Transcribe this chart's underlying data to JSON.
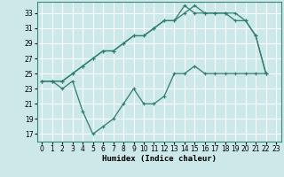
{
  "xlabel": "Humidex (Indice chaleur)",
  "bg_color": "#cce8e8",
  "grid_color": "#ffffff",
  "line_color": "#2e7d6e",
  "xlim": [
    -0.5,
    23.5
  ],
  "ylim": [
    16,
    34.5
  ],
  "xticks": [
    0,
    1,
    2,
    3,
    4,
    5,
    6,
    7,
    8,
    9,
    10,
    11,
    12,
    13,
    14,
    15,
    16,
    17,
    18,
    19,
    20,
    21,
    22,
    23
  ],
  "yticks": [
    17,
    19,
    21,
    23,
    25,
    27,
    29,
    31,
    33
  ],
  "series1_x": [
    0,
    1,
    2,
    3,
    4,
    5,
    6,
    7,
    8,
    9,
    10,
    11,
    12,
    13,
    14,
    15,
    16,
    17,
    18,
    19,
    20,
    21,
    22
  ],
  "series1_y": [
    24,
    24,
    24,
    25,
    26,
    27,
    28,
    28,
    29,
    30,
    30,
    31,
    32,
    32,
    34,
    33,
    33,
    33,
    33,
    33,
    32,
    30,
    25
  ],
  "series2_x": [
    0,
    1,
    2,
    3,
    4,
    5,
    6,
    7,
    8,
    9,
    10,
    11,
    12,
    13,
    14,
    15,
    16,
    17,
    18,
    19,
    20,
    21,
    22
  ],
  "series2_y": [
    24,
    24,
    24,
    25,
    26,
    27,
    28,
    28,
    29,
    30,
    30,
    31,
    32,
    32,
    33,
    34,
    33,
    33,
    33,
    32,
    32,
    30,
    25
  ],
  "series3_x": [
    0,
    1,
    2,
    3,
    4,
    5,
    6,
    7,
    8,
    9,
    10,
    11,
    12,
    13,
    14,
    15,
    16,
    17,
    18,
    19,
    20,
    21,
    22
  ],
  "series3_y": [
    24,
    24,
    23,
    24,
    20,
    17,
    18,
    19,
    21,
    23,
    21,
    21,
    22,
    25,
    25,
    26,
    25,
    25,
    25,
    25,
    25,
    25,
    25
  ]
}
